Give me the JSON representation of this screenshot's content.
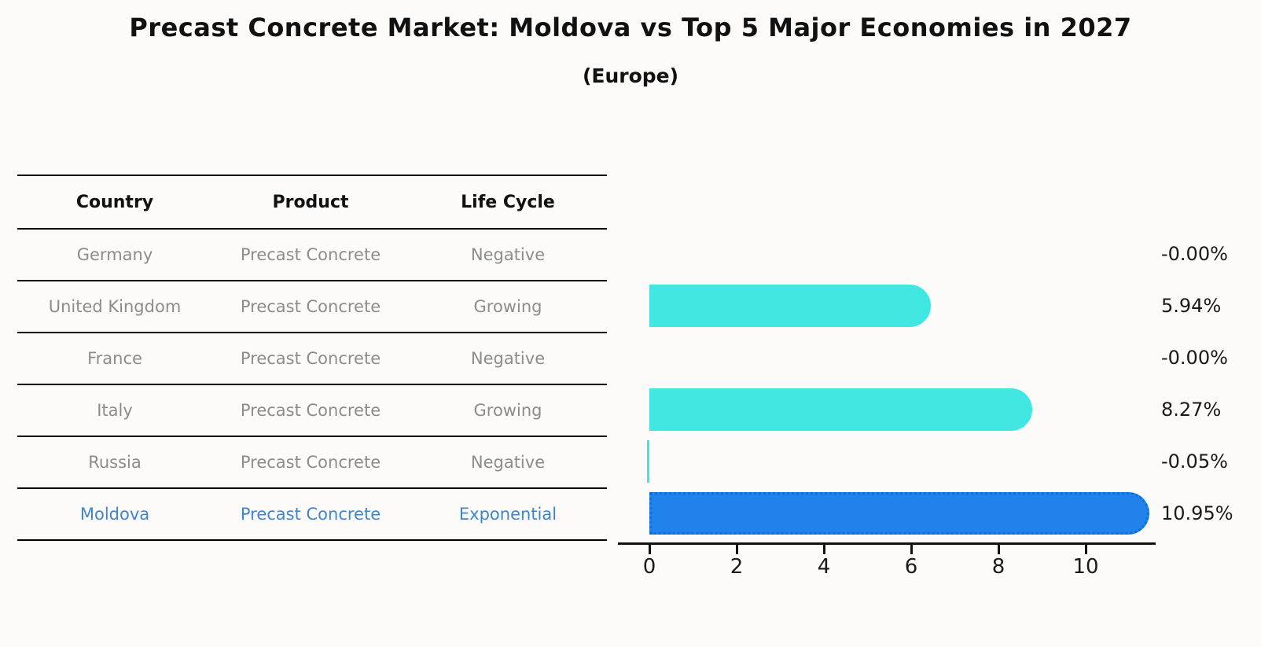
{
  "title": "Precast Concrete Market: Moldova vs Top 5 Major Economies in 2027",
  "subtitle": "(Europe)",
  "table": {
    "headers": [
      "Country",
      "Product",
      "Life Cycle"
    ],
    "rows": [
      {
        "country": "Germany",
        "product": "Precast Concrete",
        "life_cycle": "Negative",
        "highlight": false
      },
      {
        "country": "United Kingdom",
        "product": "Precast Concrete",
        "life_cycle": "Growing",
        "highlight": false
      },
      {
        "country": "France",
        "product": "Precast Concrete",
        "life_cycle": "Negative",
        "highlight": false
      },
      {
        "country": "Italy",
        "product": "Precast Concrete",
        "life_cycle": "Growing",
        "highlight": false
      },
      {
        "country": "Russia",
        "product": "Precast Concrete",
        "life_cycle": "Negative",
        "highlight": false
      },
      {
        "country": "Moldova",
        "product": "Precast Concrete",
        "life_cycle": "Exponential",
        "highlight": true
      }
    ]
  },
  "chart_data": {
    "type": "bar",
    "orientation": "horizontal",
    "title": "Precast Concrete Market: Moldova vs Top 5 Major Economies in 2027",
    "subtitle": "(Europe)",
    "categories": [
      "Germany",
      "United Kingdom",
      "France",
      "Italy",
      "Russia",
      "Moldova"
    ],
    "values": [
      -0.0,
      5.94,
      -0.0,
      8.27,
      -0.05,
      10.95
    ],
    "value_labels": [
      "-0.00%",
      "5.94%",
      "-0.00%",
      "8.27%",
      "-0.05%",
      "10.95%"
    ],
    "x_ticks": [
      "0",
      "2",
      "4",
      "6",
      "8",
      "10"
    ],
    "xlim": [
      -0.7,
      11.6
    ],
    "grid": false,
    "legend": false,
    "bar_color": "#40e6e0",
    "highlight_bar_color": "#2082ea",
    "highlight_border_color": "#0e6fd6",
    "highlight_text_color": "#3e86c9",
    "table_text_color": "#8c8c8c",
    "axis_color": "#111111"
  }
}
